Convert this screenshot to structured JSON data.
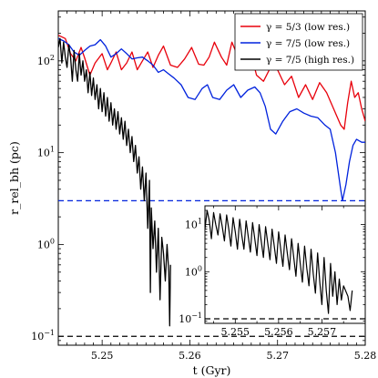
{
  "chart_data": {
    "type": "line",
    "log_y": true,
    "grid": false,
    "xlabel": "t (Gyr)",
    "ylabel": "r_rel_bh (pc)",
    "xlim": [
      5.245,
      5.28
    ],
    "ylim": [
      0.08,
      350
    ],
    "xticks": [
      5.25,
      5.26,
      5.27,
      5.28
    ],
    "xtick_labels": [
      "5.25",
      "5.26",
      "5.27",
      "5.28"
    ],
    "yticks": [
      0.1,
      1,
      10,
      100
    ],
    "ytick_labels": [
      "10^−1",
      "10^0",
      "10^1",
      "10^2"
    ],
    "legend_position": "top-right",
    "series": [
      {
        "name": "γ = 5/3 (low res.)",
        "color": "#e8000b",
        "points": [
          [
            5.245,
            190
          ],
          [
            5.2458,
            175
          ],
          [
            5.2464,
            120
          ],
          [
            5.247,
            100
          ],
          [
            5.2476,
            140
          ],
          [
            5.248,
            108
          ],
          [
            5.2486,
            70
          ],
          [
            5.2492,
            95
          ],
          [
            5.25,
            120
          ],
          [
            5.2506,
            80
          ],
          [
            5.251,
            95
          ],
          [
            5.2516,
            125
          ],
          [
            5.2522,
            80
          ],
          [
            5.2528,
            95
          ],
          [
            5.2534,
            125
          ],
          [
            5.254,
            80
          ],
          [
            5.2546,
            100
          ],
          [
            5.2552,
            125
          ],
          [
            5.2558,
            85
          ],
          [
            5.2564,
            115
          ],
          [
            5.257,
            145
          ],
          [
            5.2578,
            90
          ],
          [
            5.2586,
            85
          ],
          [
            5.2594,
            105
          ],
          [
            5.2602,
            140
          ],
          [
            5.261,
            92
          ],
          [
            5.2616,
            90
          ],
          [
            5.2622,
            110
          ],
          [
            5.2628,
            160
          ],
          [
            5.2636,
            110
          ],
          [
            5.2642,
            90
          ],
          [
            5.2648,
            160
          ],
          [
            5.2656,
            105
          ],
          [
            5.2662,
            150
          ],
          [
            5.267,
            120
          ],
          [
            5.2676,
            70
          ],
          [
            5.2684,
            60
          ],
          [
            5.2692,
            85
          ],
          [
            5.27,
            80
          ],
          [
            5.2708,
            55
          ],
          [
            5.2716,
            68
          ],
          [
            5.2724,
            40
          ],
          [
            5.2732,
            55
          ],
          [
            5.274,
            38
          ],
          [
            5.2748,
            58
          ],
          [
            5.2756,
            45
          ],
          [
            5.2764,
            30
          ],
          [
            5.2772,
            20
          ],
          [
            5.2776,
            18
          ],
          [
            5.278,
            35
          ],
          [
            5.2784,
            60
          ],
          [
            5.2788,
            40
          ],
          [
            5.2792,
            45
          ],
          [
            5.2796,
            30
          ],
          [
            5.28,
            22
          ]
        ]
      },
      {
        "name": "γ = 7/5 (low res.)",
        "color": "#0022dd",
        "points": [
          [
            5.245,
            175
          ],
          [
            5.2456,
            165
          ],
          [
            5.2462,
            150
          ],
          [
            5.2468,
            125
          ],
          [
            5.2474,
            115
          ],
          [
            5.248,
            130
          ],
          [
            5.2486,
            145
          ],
          [
            5.2492,
            150
          ],
          [
            5.2498,
            170
          ],
          [
            5.2504,
            145
          ],
          [
            5.251,
            110
          ],
          [
            5.2516,
            120
          ],
          [
            5.2522,
            135
          ],
          [
            5.2528,
            120
          ],
          [
            5.2534,
            105
          ],
          [
            5.254,
            108
          ],
          [
            5.2546,
            110
          ],
          [
            5.2552,
            100
          ],
          [
            5.2558,
            90
          ],
          [
            5.2564,
            75
          ],
          [
            5.257,
            80
          ],
          [
            5.2576,
            72
          ],
          [
            5.2582,
            65
          ],
          [
            5.259,
            55
          ],
          [
            5.2598,
            40
          ],
          [
            5.2606,
            38
          ],
          [
            5.2614,
            50
          ],
          [
            5.262,
            55
          ],
          [
            5.2626,
            40
          ],
          [
            5.2634,
            38
          ],
          [
            5.2642,
            48
          ],
          [
            5.265,
            55
          ],
          [
            5.2658,
            40
          ],
          [
            5.2666,
            48
          ],
          [
            5.2674,
            52
          ],
          [
            5.268,
            45
          ],
          [
            5.2686,
            32
          ],
          [
            5.2692,
            18
          ],
          [
            5.2698,
            16
          ],
          [
            5.2706,
            22
          ],
          [
            5.2714,
            28
          ],
          [
            5.2722,
            30
          ],
          [
            5.273,
            27
          ],
          [
            5.2738,
            25
          ],
          [
            5.2746,
            24
          ],
          [
            5.2754,
            20
          ],
          [
            5.276,
            18
          ],
          [
            5.2766,
            10
          ],
          [
            5.2772,
            4
          ],
          [
            5.2774,
            3
          ],
          [
            5.2778,
            4.5
          ],
          [
            5.2782,
            8
          ],
          [
            5.2786,
            12
          ],
          [
            5.279,
            14
          ],
          [
            5.2796,
            13
          ],
          [
            5.28,
            13
          ]
        ]
      },
      {
        "name": "γ = 7/5 (high res.)",
        "color": "#000000",
        "points": [
          [
            5.245,
            140
          ],
          [
            5.2452,
            175
          ],
          [
            5.2454,
            95
          ],
          [
            5.2456,
            160
          ],
          [
            5.2458,
            110
          ],
          [
            5.246,
            85
          ],
          [
            5.2462,
            150
          ],
          [
            5.2464,
            110
          ],
          [
            5.2466,
            60
          ],
          [
            5.2468,
            130
          ],
          [
            5.247,
            80
          ],
          [
            5.2472,
            60
          ],
          [
            5.2474,
            120
          ],
          [
            5.2476,
            70
          ],
          [
            5.2478,
            100
          ],
          [
            5.248,
            60
          ],
          [
            5.2482,
            80
          ],
          [
            5.2484,
            45
          ],
          [
            5.2486,
            75
          ],
          [
            5.2488,
            42
          ],
          [
            5.249,
            65
          ],
          [
            5.2492,
            38
          ],
          [
            5.2494,
            55
          ],
          [
            5.2496,
            30
          ],
          [
            5.2498,
            50
          ],
          [
            5.25,
            28
          ],
          [
            5.2502,
            45
          ],
          [
            5.2504,
            25
          ],
          [
            5.2506,
            40
          ],
          [
            5.2508,
            22
          ],
          [
            5.251,
            35
          ],
          [
            5.2512,
            20
          ],
          [
            5.2514,
            30
          ],
          [
            5.2516,
            18
          ],
          [
            5.2518,
            28
          ],
          [
            5.252,
            16
          ],
          [
            5.2522,
            24
          ],
          [
            5.2524,
            14
          ],
          [
            5.2526,
            22
          ],
          [
            5.2528,
            12
          ],
          [
            5.253,
            18
          ],
          [
            5.2532,
            10
          ],
          [
            5.2534,
            15
          ],
          [
            5.2536,
            8
          ],
          [
            5.2538,
            12
          ],
          [
            5.254,
            6
          ],
          [
            5.2542,
            9
          ],
          [
            5.2544,
            4
          ],
          [
            5.2546,
            7
          ],
          [
            5.2548,
            3
          ],
          [
            5.255,
            6
          ],
          [
            5.2552,
            1.5
          ],
          [
            5.2554,
            5
          ],
          [
            5.2555,
            0.3
          ],
          [
            5.2556,
            2.5
          ],
          [
            5.2558,
            0.9
          ],
          [
            5.256,
            1.8
          ],
          [
            5.2562,
            0.5
          ],
          [
            5.2564,
            1.5
          ],
          [
            5.2566,
            0.25
          ],
          [
            5.2568,
            1.2
          ],
          [
            5.257,
            0.8
          ],
          [
            5.2572,
            0.4
          ],
          [
            5.2574,
            1.0
          ],
          [
            5.2576,
            0.5
          ],
          [
            5.2577,
            0.13
          ],
          [
            5.2578,
            0.6
          ]
        ]
      }
    ],
    "reference_lines": [
      {
        "y": 3.0,
        "color": "#0022dd",
        "style": "dashed"
      },
      {
        "y": 0.1,
        "color": "#000000",
        "style": "dashed"
      }
    ],
    "inset": {
      "xlim": [
        5.2543,
        5.258
      ],
      "ylim": [
        0.08,
        25
      ],
      "xticks": [
        5.255,
        5.256,
        5.257
      ],
      "xtick_labels": [
        "5.255",
        "5.256",
        "5.257"
      ],
      "yticks": [
        0.1,
        1,
        10
      ],
      "ytick_labels": [
        "10^−1",
        "10^0",
        "10^1"
      ],
      "reference_line": {
        "y": 0.1,
        "color": "#000000",
        "style": "dashed"
      },
      "color": "#000000",
      "points": [
        [
          5.2543,
          8
        ],
        [
          5.25435,
          20
        ],
        [
          5.2544,
          12
        ],
        [
          5.25445,
          5
        ],
        [
          5.2545,
          18
        ],
        [
          5.25455,
          10
        ],
        [
          5.2546,
          6
        ],
        [
          5.25465,
          17
        ],
        [
          5.2547,
          9
        ],
        [
          5.25475,
          4.5
        ],
        [
          5.2548,
          16
        ],
        [
          5.25485,
          8
        ],
        [
          5.2549,
          3.5
        ],
        [
          5.25495,
          14
        ],
        [
          5.255,
          7
        ],
        [
          5.25505,
          3
        ],
        [
          5.2551,
          13
        ],
        [
          5.25515,
          6
        ],
        [
          5.2552,
          3
        ],
        [
          5.25525,
          12
        ],
        [
          5.2553,
          5.5
        ],
        [
          5.25535,
          2.6
        ],
        [
          5.2554,
          11
        ],
        [
          5.25545,
          5
        ],
        [
          5.2555,
          2.2
        ],
        [
          5.25555,
          10
        ],
        [
          5.2556,
          4.5
        ],
        [
          5.25565,
          2
        ],
        [
          5.2557,
          9
        ],
        [
          5.25575,
          4
        ],
        [
          5.2558,
          1.8
        ],
        [
          5.25585,
          8
        ],
        [
          5.2559,
          3.5
        ],
        [
          5.25595,
          1.5
        ],
        [
          5.256,
          7
        ],
        [
          5.25605,
          3
        ],
        [
          5.2561,
          1.3
        ],
        [
          5.25615,
          6
        ],
        [
          5.2562,
          2.5
        ],
        [
          5.25625,
          1.1
        ],
        [
          5.2563,
          5
        ],
        [
          5.25635,
          2
        ],
        [
          5.2564,
          0.8
        ],
        [
          5.25645,
          4
        ],
        [
          5.2565,
          1.5
        ],
        [
          5.25655,
          0.6
        ],
        [
          5.2566,
          3.5
        ],
        [
          5.25665,
          1.2
        ],
        [
          5.2567,
          0.5
        ],
        [
          5.25675,
          3
        ],
        [
          5.2568,
          0.9
        ],
        [
          5.25685,
          0.35
        ],
        [
          5.2569,
          2.5
        ],
        [
          5.25695,
          0.6
        ],
        [
          5.257,
          0.2
        ],
        [
          5.25705,
          2
        ],
        [
          5.2571,
          0.4
        ],
        [
          5.25715,
          0.13
        ],
        [
          5.2572,
          1.5
        ],
        [
          5.25725,
          0.3
        ],
        [
          5.2573,
          1.0
        ],
        [
          5.25735,
          0.2
        ],
        [
          5.2574,
          0.7
        ],
        [
          5.25745,
          0.25
        ],
        [
          5.2575,
          0.5
        ],
        [
          5.2576,
          0.3
        ],
        [
          5.25765,
          0.15
        ],
        [
          5.2577,
          0.4
        ]
      ]
    }
  }
}
